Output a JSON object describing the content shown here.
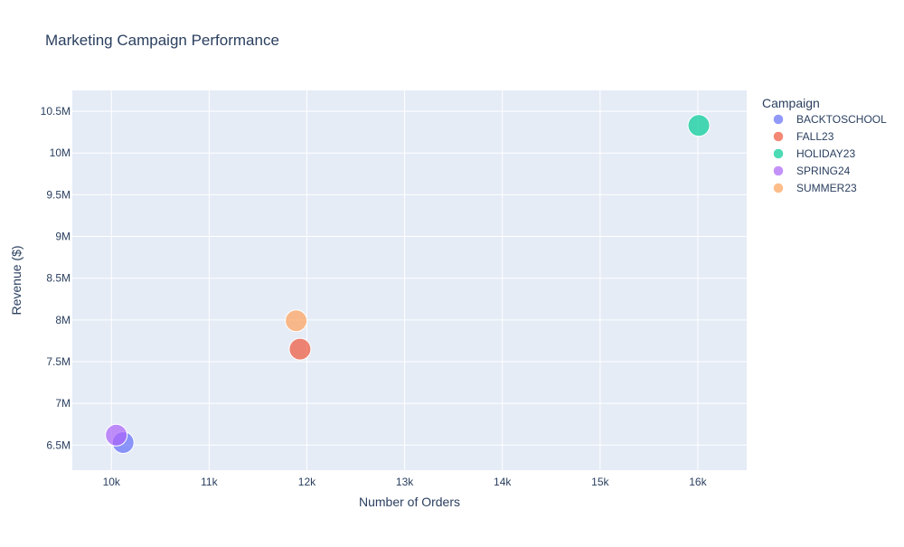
{
  "chart_data": {
    "type": "scatter",
    "title": "Marketing Campaign Performance",
    "xlabel": "Number of Orders",
    "ylabel": "Revenue ($)",
    "xlim": [
      9600,
      16500
    ],
    "ylim": [
      6200000,
      10750000
    ],
    "x_ticks": [
      {
        "value": 10000,
        "label": "10k"
      },
      {
        "value": 11000,
        "label": "11k"
      },
      {
        "value": 12000,
        "label": "12k"
      },
      {
        "value": 13000,
        "label": "13k"
      },
      {
        "value": 14000,
        "label": "14k"
      },
      {
        "value": 15000,
        "label": "15k"
      },
      {
        "value": 16000,
        "label": "16k"
      }
    ],
    "y_ticks": [
      {
        "value": 6500000,
        "label": "6.5M"
      },
      {
        "value": 7000000,
        "label": "7M"
      },
      {
        "value": 7500000,
        "label": "7.5M"
      },
      {
        "value": 8000000,
        "label": "8M"
      },
      {
        "value": 8500000,
        "label": "8.5M"
      },
      {
        "value": 9000000,
        "label": "9M"
      },
      {
        "value": 9500000,
        "label": "9.5M"
      },
      {
        "value": 10000000,
        "label": "10M"
      },
      {
        "value": 10500000,
        "label": "10.5M"
      }
    ],
    "grid": true,
    "legend": {
      "title": "Campaign",
      "placement": "right"
    },
    "series": [
      {
        "name": "BACKTOSCHOOL",
        "color": "#636efa",
        "points": [
          {
            "x": 10120,
            "y": 6530000
          }
        ]
      },
      {
        "name": "FALL23",
        "color": "#EF553B",
        "points": [
          {
            "x": 11930,
            "y": 7650000
          }
        ]
      },
      {
        "name": "HOLIDAY23",
        "color": "#00cc96",
        "points": [
          {
            "x": 16010,
            "y": 10330000
          }
        ]
      },
      {
        "name": "SPRING24",
        "color": "#ab63fa",
        "points": [
          {
            "x": 10050,
            "y": 6620000
          }
        ]
      },
      {
        "name": "SUMMER23",
        "color": "#FFA15A",
        "points": [
          {
            "x": 11890,
            "y": 7990000
          }
        ]
      }
    ]
  }
}
